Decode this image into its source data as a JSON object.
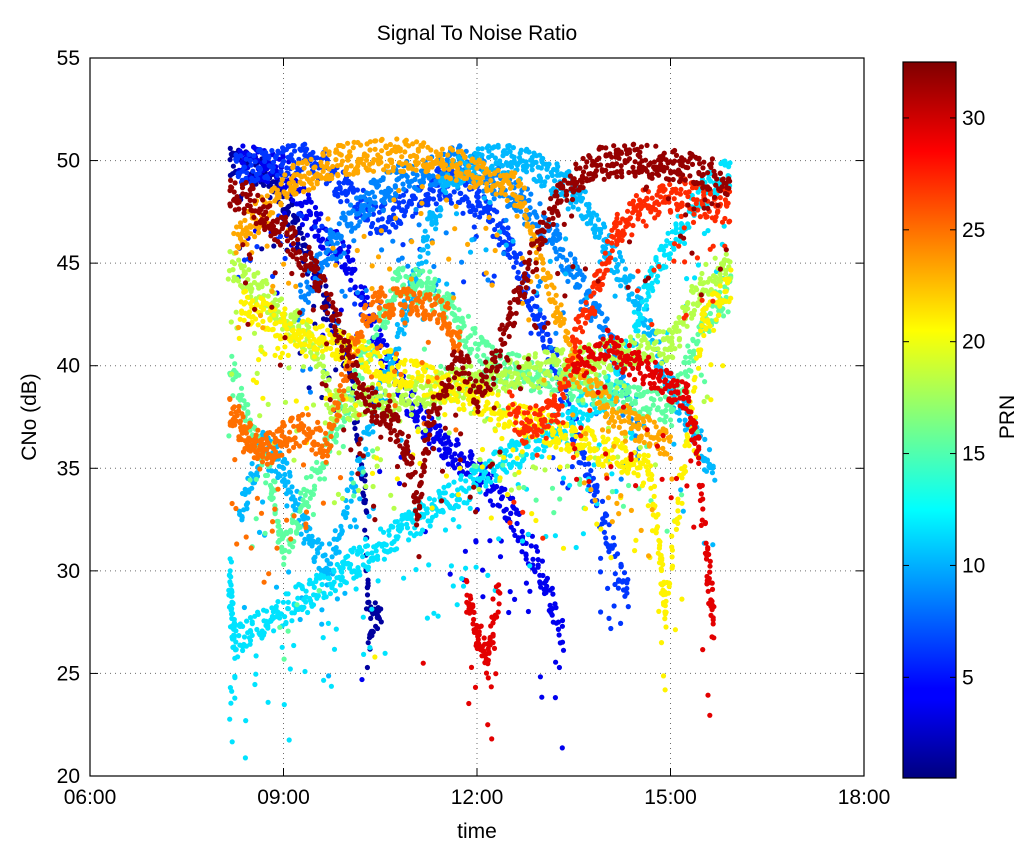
{
  "chart_data": {
    "type": "scatter",
    "title": "Signal To Noise Ratio",
    "xlabel": "time",
    "ylabel": "CNo (dB)",
    "x_unit": "hh:mm",
    "xlim": [
      "06:00",
      "18:00"
    ],
    "ylim": [
      20,
      55
    ],
    "x_ticks": [
      "06:00",
      "09:00",
      "12:00",
      "15:00",
      "18:00"
    ],
    "y_ticks": [
      20,
      25,
      30,
      35,
      40,
      45,
      50,
      55
    ],
    "grid": true,
    "colorbar": {
      "label": "PRN",
      "range": [
        0.5,
        32.5
      ],
      "ticks": [
        5,
        10,
        15,
        20,
        25,
        30
      ],
      "colormap": "jet"
    },
    "series": [
      {
        "prn": 1,
        "color": "#00009f",
        "points": [
          [
            "08:10",
            49.8
          ],
          [
            "08:40",
            49.6
          ],
          [
            "09:10",
            47
          ],
          [
            "09:40",
            43
          ],
          [
            "10:00",
            40
          ],
          [
            "10:15",
            34
          ],
          [
            "10:20",
            27.5
          ],
          [
            "10:30",
            28
          ]
        ]
      },
      {
        "prn": 3,
        "color": "#0000ef",
        "points": [
          [
            "08:20",
            50
          ],
          [
            "09:00",
            49.5
          ],
          [
            "09:30",
            47
          ],
          [
            "10:00",
            45
          ],
          [
            "10:30",
            41
          ],
          [
            "11:00",
            38
          ],
          [
            "11:30",
            36
          ],
          [
            "12:00",
            35
          ],
          [
            "12:30",
            33
          ],
          [
            "13:00",
            30
          ],
          [
            "13:20",
            26.5
          ]
        ]
      },
      {
        "prn": 5,
        "color": "#0036ff",
        "points": [
          [
            "08:15",
            49.5
          ],
          [
            "09:00",
            50
          ],
          [
            "09:30",
            50
          ],
          [
            "10:00",
            48.5
          ],
          [
            "10:30",
            47
          ],
          [
            "11:30",
            49
          ],
          [
            "12:00",
            48
          ],
          [
            "12:30",
            46
          ],
          [
            "13:00",
            42
          ],
          [
            "13:30",
            37
          ],
          [
            "14:00",
            32
          ],
          [
            "14:20",
            29
          ]
        ]
      },
      {
        "prn": 8,
        "color": "#0084ff",
        "points": [
          [
            "09:15",
            43
          ],
          [
            "09:45",
            46
          ],
          [
            "10:15",
            48
          ],
          [
            "10:45",
            49
          ],
          [
            "11:15",
            49.5
          ],
          [
            "11:45",
            50
          ],
          [
            "12:15",
            49
          ],
          [
            "12:45",
            48
          ],
          [
            "13:15",
            46
          ],
          [
            "13:45",
            43
          ],
          [
            "14:15",
            40
          ],
          [
            "14:30",
            36
          ]
        ]
      },
      {
        "prn": 10,
        "color": "#00b8ff",
        "points": [
          [
            "08:20",
            33
          ],
          [
            "08:40",
            36
          ],
          [
            "09:00",
            35
          ],
          [
            "09:20",
            32
          ],
          [
            "09:40",
            30
          ],
          [
            "11:30",
            49
          ],
          [
            "12:00",
            50
          ],
          [
            "12:30",
            50
          ],
          [
            "13:00",
            49.5
          ],
          [
            "13:30",
            48.5
          ],
          [
            "14:00",
            46
          ],
          [
            "14:30",
            43
          ],
          [
            "15:00",
            39
          ],
          [
            "15:40",
            35
          ]
        ]
      },
      {
        "prn": 12,
        "color": "#00e3ff",
        "points": [
          [
            "08:10",
            30
          ],
          [
            "08:12",
            28
          ],
          [
            "08:15",
            26.5
          ],
          [
            "14:10",
            39
          ],
          [
            "14:40",
            44
          ],
          [
            "15:10",
            47
          ],
          [
            "15:40",
            49
          ],
          [
            "15:55",
            49.3
          ]
        ]
      },
      {
        "prn": 16,
        "color": "#5effa1",
        "points": [
          [
            "08:10",
            40
          ],
          [
            "08:30",
            37
          ],
          [
            "08:50",
            34
          ],
          [
            "09:00",
            31
          ],
          [
            "10:45",
            44
          ],
          [
            "11:15",
            44
          ],
          [
            "11:45",
            42
          ],
          [
            "12:15",
            40
          ],
          [
            "15:00",
            38
          ],
          [
            "15:30",
            42
          ],
          [
            "15:55",
            44
          ]
        ]
      },
      {
        "prn": 18,
        "color": "#b5ff4a",
        "points": [
          [
            "08:10",
            45
          ],
          [
            "08:30",
            44
          ],
          [
            "08:50",
            43
          ],
          [
            "09:10",
            42
          ],
          [
            "09:30",
            41
          ],
          [
            "09:45",
            38
          ],
          [
            "15:00",
            41
          ],
          [
            "15:30",
            44
          ],
          [
            "15:55",
            45
          ]
        ]
      },
      {
        "prn": 20,
        "color": "#fff300",
        "points": [
          [
            "08:20",
            43
          ],
          [
            "08:40",
            42.5
          ],
          [
            "09:00",
            42
          ],
          [
            "14:40",
            35
          ],
          [
            "14:50",
            31
          ],
          [
            "14:55",
            28
          ],
          [
            "15:30",
            42
          ],
          [
            "15:55",
            44
          ]
        ]
      },
      {
        "prn": 23,
        "color": "#ffa800",
        "points": [
          [
            "08:15",
            46
          ],
          [
            "08:40",
            47.5
          ],
          [
            "09:10",
            49
          ],
          [
            "09:40",
            49.8
          ],
          [
            "10:10",
            50.2
          ],
          [
            "10:40",
            50.3
          ],
          [
            "11:10",
            50.1
          ],
          [
            "11:40",
            49.8
          ],
          [
            "12:10",
            49.3
          ],
          [
            "12:40",
            48.5
          ],
          [
            "13:30",
            40
          ],
          [
            "14:00",
            38
          ],
          [
            "14:30",
            37
          ],
          [
            "15:00",
            36
          ]
        ]
      },
      {
        "prn": 25,
        "color": "#ff6f00",
        "points": [
          [
            "08:10",
            38
          ],
          [
            "08:20",
            37
          ],
          [
            "08:30",
            36.5
          ],
          [
            "08:40",
            36
          ],
          [
            "08:50",
            36
          ],
          [
            "09:00",
            36.5
          ],
          [
            "09:20",
            37
          ],
          [
            "09:40",
            36
          ],
          [
            "10:10",
            42
          ],
          [
            "10:30",
            43
          ],
          [
            "10:50",
            43
          ],
          [
            "11:10",
            43
          ],
          [
            "11:30",
            42.5
          ],
          [
            "11:45",
            41
          ]
        ]
      },
      {
        "prn": 28,
        "color": "#ff2a00",
        "points": [
          [
            "12:30",
            38
          ],
          [
            "12:45",
            37
          ],
          [
            "13:00",
            37.5
          ],
          [
            "13:15",
            38
          ],
          [
            "13:30",
            41
          ],
          [
            "13:50",
            44
          ],
          [
            "14:10",
            46.5
          ],
          [
            "14:30",
            47.8
          ],
          [
            "14:50",
            48
          ],
          [
            "15:10",
            48.5
          ],
          [
            "15:30",
            48
          ],
          [
            "15:55",
            47.7
          ]
        ]
      },
      {
        "prn": 29,
        "color": "#e30000",
        "points": [
          [
            "13:30",
            40
          ],
          [
            "14:00",
            41
          ],
          [
            "14:30",
            40
          ],
          [
            "15:00",
            39
          ],
          [
            "15:15",
            38.5
          ],
          [
            "15:25",
            36
          ],
          [
            "15:35",
            30
          ],
          [
            "15:40",
            27.5
          ],
          [
            "11:50",
            29
          ],
          [
            "12:00",
            27
          ],
          [
            "12:10",
            26
          ],
          [
            "12:20",
            29
          ]
        ]
      },
      {
        "prn": 32,
        "color": "#950000",
        "points": [
          [
            "08:10",
            48.5
          ],
          [
            "08:30",
            48
          ],
          [
            "08:50",
            47
          ],
          [
            "09:10",
            46
          ],
          [
            "09:30",
            44.5
          ],
          [
            "09:50",
            42
          ],
          [
            "10:10",
            39
          ],
          [
            "10:25",
            38
          ],
          [
            "10:40",
            37.5
          ],
          [
            "10:55",
            36
          ],
          [
            "11:05",
            33
          ],
          [
            "11:15",
            37
          ],
          [
            "11:30",
            39
          ],
          [
            "11:45",
            40.5
          ],
          [
            "12:00",
            38.5
          ],
          [
            "12:15",
            40
          ],
          [
            "12:30",
            42
          ],
          [
            "12:45",
            44.5
          ],
          [
            "13:00",
            46.5
          ],
          [
            "13:15",
            48
          ],
          [
            "13:30",
            49
          ],
          [
            "13:50",
            49.8
          ],
          [
            "14:10",
            50
          ],
          [
            "14:30",
            50
          ],
          [
            "14:50",
            49.9
          ],
          [
            "15:10",
            49.7
          ],
          [
            "15:30",
            49.4
          ],
          [
            "15:55",
            49.1
          ]
        ]
      }
    ],
    "outliers": [
      {
        "x": "12:10",
        "y": 22.5,
        "color": "#e30000"
      },
      {
        "x": "14:55",
        "y": 24.2,
        "color": "#fff300"
      },
      {
        "x": "10:13",
        "y": 24.7,
        "color": "#0000ef"
      },
      {
        "x": "11:10",
        "y": 25.5,
        "color": "#e30000"
      },
      {
        "x": "10:25",
        "y": 25.8,
        "color": "#fff300"
      },
      {
        "x": "12:15",
        "y": 26.5,
        "color": "#e30000"
      }
    ]
  }
}
